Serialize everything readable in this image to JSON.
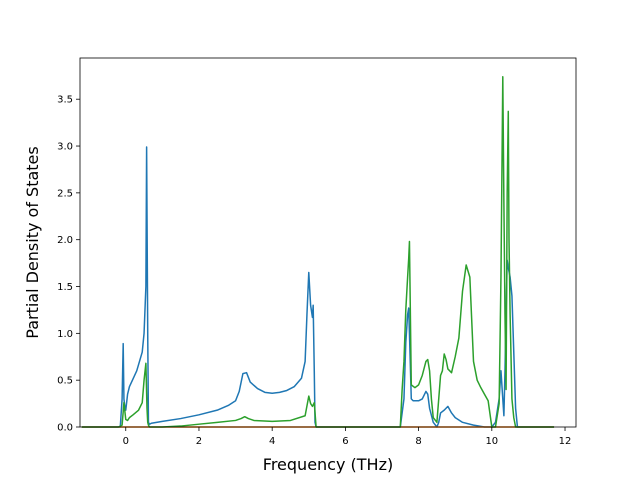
{
  "chart_data": {
    "type": "line",
    "title": "",
    "xlabel": "Frequency (THz)",
    "ylabel": "Partial Density of States",
    "xlim": [
      -1.25,
      12.3
    ],
    "ylim": [
      0.0,
      3.94
    ],
    "xticks": [
      0,
      2,
      4,
      6,
      8,
      10,
      12
    ],
    "xtick_labels": [
      "0",
      "2",
      "4",
      "6",
      "8",
      "10",
      "12"
    ],
    "yticks": [
      0.0,
      0.5,
      1.0,
      1.5,
      2.0,
      2.5,
      3.0,
      3.5
    ],
    "ytick_labels": [
      "0.0",
      "0.5",
      "1.0",
      "1.5",
      "2.0",
      "2.5",
      "3.0",
      "3.5"
    ],
    "grid": false,
    "legend": false,
    "series": [
      {
        "color": "#1f77b4",
        "x": [
          -1.2,
          -0.15,
          -0.1,
          -0.07,
          -0.05,
          -0.02,
          0.0,
          0.05,
          0.1,
          0.3,
          0.45,
          0.5,
          0.52,
          0.55,
          0.57,
          0.6,
          0.62,
          0.65,
          0.7,
          1.0,
          1.5,
          2.0,
          2.5,
          2.8,
          3.0,
          3.1,
          3.2,
          3.3,
          3.4,
          3.6,
          3.8,
          4.0,
          4.2,
          4.4,
          4.6,
          4.8,
          4.9,
          4.95,
          5.0,
          5.05,
          5.1,
          5.12,
          5.15,
          5.17,
          5.2,
          5.5,
          6.0,
          7.0,
          7.5,
          7.6,
          7.65,
          7.7,
          7.73,
          7.75,
          7.8,
          7.85,
          8.0,
          8.1,
          8.2,
          8.25,
          8.3,
          8.4,
          8.5,
          8.55,
          8.6,
          8.7,
          8.8,
          8.9,
          9.0,
          9.2,
          9.5,
          9.8,
          10.0,
          10.1,
          10.2,
          10.25,
          10.3,
          10.33,
          10.36,
          10.38,
          10.42,
          10.45,
          10.5,
          10.55,
          10.6,
          10.65,
          10.7,
          11.0,
          11.7
        ],
        "y": [
          0.0,
          0.0,
          0.3,
          0.89,
          0.3,
          0.2,
          0.18,
          0.35,
          0.43,
          0.6,
          0.8,
          1.0,
          1.2,
          1.5,
          2.99,
          1.0,
          0.05,
          0.03,
          0.04,
          0.06,
          0.09,
          0.13,
          0.18,
          0.23,
          0.28,
          0.38,
          0.57,
          0.58,
          0.48,
          0.41,
          0.37,
          0.36,
          0.37,
          0.39,
          0.43,
          0.52,
          0.7,
          1.2,
          1.65,
          1.3,
          1.17,
          1.3,
          0.6,
          0.05,
          0.0,
          0.0,
          0.0,
          0.0,
          0.0,
          0.3,
          0.9,
          1.2,
          1.27,
          1.0,
          0.3,
          0.28,
          0.28,
          0.3,
          0.38,
          0.35,
          0.2,
          0.05,
          0.0,
          0.05,
          0.15,
          0.18,
          0.22,
          0.15,
          0.1,
          0.05,
          0.02,
          0.0,
          0.0,
          0.05,
          0.3,
          0.6,
          0.3,
          0.12,
          0.6,
          1.0,
          1.78,
          1.7,
          1.6,
          1.4,
          0.8,
          0.2,
          0.0,
          0.0,
          0.0
        ]
      },
      {
        "color": "#ff7f0e",
        "x": [
          -1.2,
          11.7
        ],
        "y": [
          0.0,
          0.0
        ]
      },
      {
        "color": "#2ca02c",
        "x": [
          -1.2,
          -0.2,
          -0.1,
          -0.05,
          0.0,
          0.05,
          0.1,
          0.2,
          0.35,
          0.45,
          0.5,
          0.55,
          0.58,
          0.6,
          0.62,
          0.65,
          1.0,
          1.5,
          2.0,
          2.5,
          3.0,
          3.15,
          3.25,
          3.35,
          3.5,
          4.0,
          4.5,
          4.9,
          5.0,
          5.05,
          5.1,
          5.15,
          5.2,
          5.5,
          6.0,
          7.0,
          7.5,
          7.55,
          7.6,
          7.65,
          7.7,
          7.73,
          7.75,
          7.8,
          7.9,
          8.0,
          8.1,
          8.2,
          8.25,
          8.3,
          8.35,
          8.4,
          8.5,
          8.55,
          8.6,
          8.65,
          8.7,
          8.75,
          8.8,
          8.9,
          9.0,
          9.1,
          9.2,
          9.3,
          9.4,
          9.5,
          9.6,
          9.7,
          9.8,
          9.9,
          10.0,
          10.1,
          10.2,
          10.25,
          10.3,
          10.33,
          10.36,
          10.39,
          10.42,
          10.45,
          10.47,
          10.5,
          10.55,
          10.6,
          10.65,
          10.7,
          11.0,
          11.7
        ],
        "y": [
          0.0,
          0.0,
          0.02,
          0.26,
          0.08,
          0.07,
          0.1,
          0.13,
          0.18,
          0.26,
          0.5,
          0.68,
          0.2,
          0.05,
          0.02,
          0.0,
          0.0,
          0.01,
          0.03,
          0.05,
          0.07,
          0.09,
          0.11,
          0.09,
          0.07,
          0.06,
          0.07,
          0.12,
          0.33,
          0.25,
          0.22,
          0.26,
          0.0,
          0.0,
          0.0,
          0.0,
          0.0,
          0.4,
          0.7,
          1.25,
          1.6,
          1.8,
          1.98,
          0.45,
          0.42,
          0.45,
          0.55,
          0.7,
          0.72,
          0.6,
          0.3,
          0.1,
          0.05,
          0.3,
          0.55,
          0.6,
          0.78,
          0.72,
          0.62,
          0.58,
          0.75,
          0.95,
          1.45,
          1.73,
          1.6,
          0.7,
          0.5,
          0.42,
          0.35,
          0.28,
          0.0,
          0.0,
          0.25,
          1.6,
          3.74,
          2.4,
          1.2,
          0.4,
          2.5,
          3.37,
          2.0,
          1.2,
          0.3,
          0.1,
          0.0,
          0.0,
          0.0,
          0.0
        ]
      }
    ]
  }
}
